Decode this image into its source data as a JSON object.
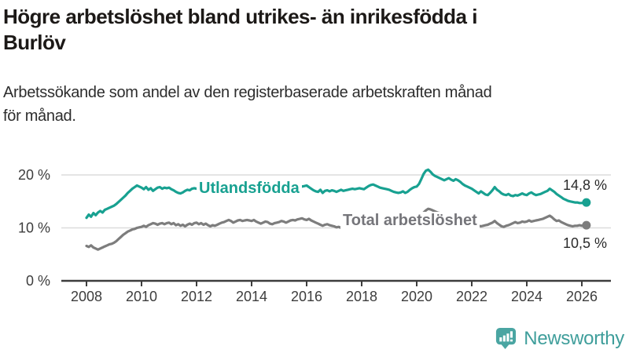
{
  "header": {
    "title_line1": "Högre arbetslöshet bland utrikes- än inrikesfödda i",
    "title_line2": "Burlöv",
    "subtitle_line1": "Arbetssökande som andel av den registerbaserade arbetskraften månad",
    "subtitle_line2": "för månad."
  },
  "chart_data": {
    "type": "line",
    "title": "Högre arbetslöshet bland utrikes- än inrikesfödda i Burlöv",
    "subtitle": "Arbetssökande som andel av den registerbaserade arbetskraften månad för månad.",
    "frequency": "monthly",
    "x_range": [
      "2008-01",
      "2026-03"
    ],
    "ylim": [
      0,
      22
    ],
    "grid": "horizontal",
    "legend": "inline-labels",
    "y_ticks": [
      {
        "label": "20 %",
        "value": 20
      },
      {
        "label": "10 %",
        "value": 10
      },
      {
        "label": "0 %",
        "value": 0
      }
    ],
    "x_ticks": [
      {
        "label": "2008",
        "year": 2008
      },
      {
        "label": "2010",
        "year": 2010
      },
      {
        "label": "2012",
        "year": 2012
      },
      {
        "label": "2014",
        "year": 2014
      },
      {
        "label": "2016",
        "year": 2016
      },
      {
        "label": "2018",
        "year": 2018
      },
      {
        "label": "2020",
        "year": 2020
      },
      {
        "label": "2022",
        "year": 2022
      },
      {
        "label": "2024",
        "year": 2024
      },
      {
        "label": "2026",
        "year": 2026
      }
    ],
    "series": [
      {
        "name": "Utlandsfödda",
        "color": "#18a191",
        "end_label": "14,8 %",
        "end_value": 14.8,
        "values": [
          11.9,
          12.5,
          12.1,
          12.8,
          12.4,
          12.9,
          13.2,
          12.9,
          13.4,
          13.6,
          13.8,
          14.0,
          14.2,
          14.5,
          14.9,
          15.3,
          15.7,
          16.1,
          16.6,
          17.0,
          17.4,
          17.7,
          18.0,
          17.8,
          17.6,
          17.3,
          17.7,
          17.2,
          17.5,
          17.0,
          17.3,
          17.6,
          17.7,
          17.4,
          17.6,
          17.5,
          17.6,
          17.3,
          17.1,
          16.8,
          16.6,
          16.5,
          16.7,
          17.0,
          17.2,
          17.1,
          17.4,
          17.5,
          17.4,
          17.7,
          17.9,
          17.6,
          17.4,
          17.2,
          17.4,
          17.1,
          17.0,
          17.2,
          17.3,
          17.1,
          16.9,
          17.1,
          17.3,
          17.0,
          16.8,
          16.7,
          16.9,
          17.1,
          17.0,
          17.2,
          17.4,
          17.3,
          17.2,
          17.4,
          17.6,
          17.3,
          17.1,
          17.0,
          17.2,
          17.4,
          17.6,
          17.5,
          17.7,
          17.6,
          17.5,
          17.7,
          17.9,
          17.6,
          17.4,
          17.3,
          17.5,
          17.7,
          17.9,
          18.0,
          17.8,
          17.9,
          18.0,
          17.7,
          17.4,
          17.1,
          16.9,
          16.8,
          17.2,
          16.6,
          17.0,
          17.1,
          16.9,
          17.1,
          17.0,
          16.8,
          17.0,
          17.2,
          17.0,
          17.1,
          17.2,
          17.3,
          17.4,
          17.3,
          17.4,
          17.5,
          17.4,
          17.3,
          17.6,
          17.9,
          18.1,
          18.2,
          18.0,
          17.8,
          17.6,
          17.5,
          17.4,
          17.3,
          17.2,
          17.0,
          16.8,
          16.7,
          16.6,
          16.7,
          16.9,
          16.6,
          16.8,
          17.2,
          17.5,
          17.7,
          17.8,
          18.3,
          19.2,
          20.2,
          20.8,
          21.0,
          20.6,
          20.1,
          19.8,
          19.6,
          19.4,
          19.2,
          19.0,
          19.2,
          19.4,
          19.1,
          18.9,
          19.2,
          19.0,
          18.7,
          18.3,
          18.0,
          17.8,
          17.6,
          17.4,
          17.1,
          16.8,
          16.5,
          16.9,
          16.6,
          16.3,
          16.2,
          16.6,
          17.1,
          17.7,
          17.2,
          16.9,
          16.5,
          16.3,
          16.2,
          16.4,
          16.1,
          16.0,
          16.2,
          16.1,
          16.3,
          16.5,
          16.3,
          16.2,
          16.5,
          16.7,
          16.4,
          16.2,
          16.3,
          16.4,
          16.6,
          16.8,
          17.0,
          17.4,
          17.1,
          16.8,
          16.4,
          16.1,
          15.8,
          15.5,
          15.3,
          15.1,
          15.0,
          14.9,
          14.8,
          14.8,
          14.7,
          14.7,
          14.8,
          14.8
        ]
      },
      {
        "name": "Total arbetslöshet",
        "color": "#7d7d7d",
        "end_label": "10,5 %",
        "end_value": 10.5,
        "values": [
          6.6,
          6.4,
          6.7,
          6.3,
          6.1,
          5.9,
          6.1,
          6.3,
          6.5,
          6.7,
          6.9,
          7.0,
          7.2,
          7.5,
          7.9,
          8.3,
          8.7,
          9.0,
          9.3,
          9.5,
          9.7,
          9.8,
          10.0,
          10.1,
          10.2,
          10.4,
          10.2,
          10.5,
          10.7,
          10.9,
          10.8,
          10.6,
          10.8,
          10.9,
          10.7,
          10.9,
          11.0,
          10.7,
          10.9,
          10.5,
          10.7,
          10.4,
          10.6,
          10.3,
          10.6,
          10.8,
          10.6,
          10.9,
          11.0,
          10.7,
          10.9,
          10.6,
          10.8,
          10.5,
          10.3,
          10.5,
          10.4,
          10.6,
          10.8,
          11.0,
          11.1,
          11.3,
          11.5,
          11.3,
          11.0,
          11.2,
          11.4,
          11.5,
          11.3,
          11.4,
          11.5,
          11.4,
          11.3,
          11.5,
          11.2,
          11.0,
          10.8,
          11.0,
          11.2,
          11.1,
          10.8,
          10.7,
          10.9,
          11.0,
          11.1,
          11.3,
          11.2,
          11.0,
          11.2,
          11.4,
          11.5,
          11.4,
          11.6,
          11.7,
          11.8,
          11.6,
          11.5,
          11.7,
          11.4,
          11.2,
          11.0,
          10.8,
          10.6,
          10.4,
          10.6,
          10.7,
          10.5,
          10.4,
          10.3,
          10.1,
          10.2,
          10.0,
          9.9,
          10.0,
          10.1,
          10.0,
          9.9,
          10.0,
          10.1,
          10.0,
          10.0,
          9.9,
          10.0,
          10.1,
          10.0,
          9.9,
          10.0,
          10.1,
          10.2,
          10.1,
          10.2,
          10.3,
          10.2,
          10.3,
          10.4,
          10.3,
          10.4,
          10.5,
          10.6,
          10.5,
          10.6,
          10.7,
          10.6,
          10.7,
          10.8,
          11.1,
          11.9,
          12.9,
          13.3,
          13.6,
          13.5,
          13.3,
          13.1,
          12.9,
          12.8,
          12.7,
          12.5,
          12.4,
          12.2,
          12.0,
          11.8,
          11.6,
          11.4,
          11.2,
          11.0,
          10.9,
          10.8,
          10.7,
          10.5,
          10.4,
          10.3,
          10.4,
          10.3,
          10.4,
          10.5,
          10.6,
          10.8,
          11.0,
          11.3,
          10.9,
          10.6,
          10.3,
          10.2,
          10.4,
          10.5,
          10.7,
          10.9,
          11.1,
          10.9,
          11.0,
          11.2,
          11.1,
          11.2,
          11.4,
          11.2,
          11.3,
          11.4,
          11.5,
          11.6,
          11.7,
          11.9,
          12.1,
          12.3,
          12.0,
          11.6,
          11.3,
          11.4,
          11.1,
          10.9,
          10.7,
          10.5,
          10.4,
          10.3,
          10.4,
          10.4,
          10.5,
          10.4,
          10.5,
          10.5
        ]
      }
    ]
  },
  "footer": {
    "brand": "Newsworthy",
    "brand_color": "#3f9e9b",
    "icon": "bar-chart-speech-bubble"
  },
  "colors": {
    "series_foreign_born": "#18a191",
    "series_total": "#7d7d7d",
    "gridline": "#dcdcdc",
    "axis": "#3d3d3d"
  }
}
